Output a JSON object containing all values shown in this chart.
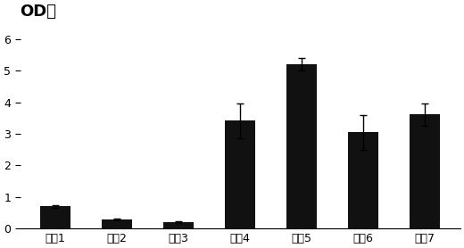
{
  "categories": [
    "配方1",
    "配方2",
    "配方3",
    "配方4",
    "配方5",
    "配方6",
    "配方7"
  ],
  "values": [
    0.7,
    0.28,
    0.2,
    3.42,
    5.22,
    3.05,
    3.62
  ],
  "errors": [
    0.04,
    0.02,
    0.02,
    0.55,
    0.2,
    0.55,
    0.35
  ],
  "bar_color": "#111111",
  "background_color": "#ffffff",
  "title": "OD値",
  "ylim": [
    0,
    6.5
  ],
  "yticks": [
    0,
    1,
    2,
    3,
    4,
    5,
    6
  ],
  "ytick_labels": [
    "0",
    "1 –",
    "2 –",
    "3 –",
    "4 –",
    "5 –",
    "6 –"
  ],
  "title_fontsize": 13,
  "tick_fontsize": 9,
  "xtick_fontsize": 9,
  "bar_width": 0.5
}
